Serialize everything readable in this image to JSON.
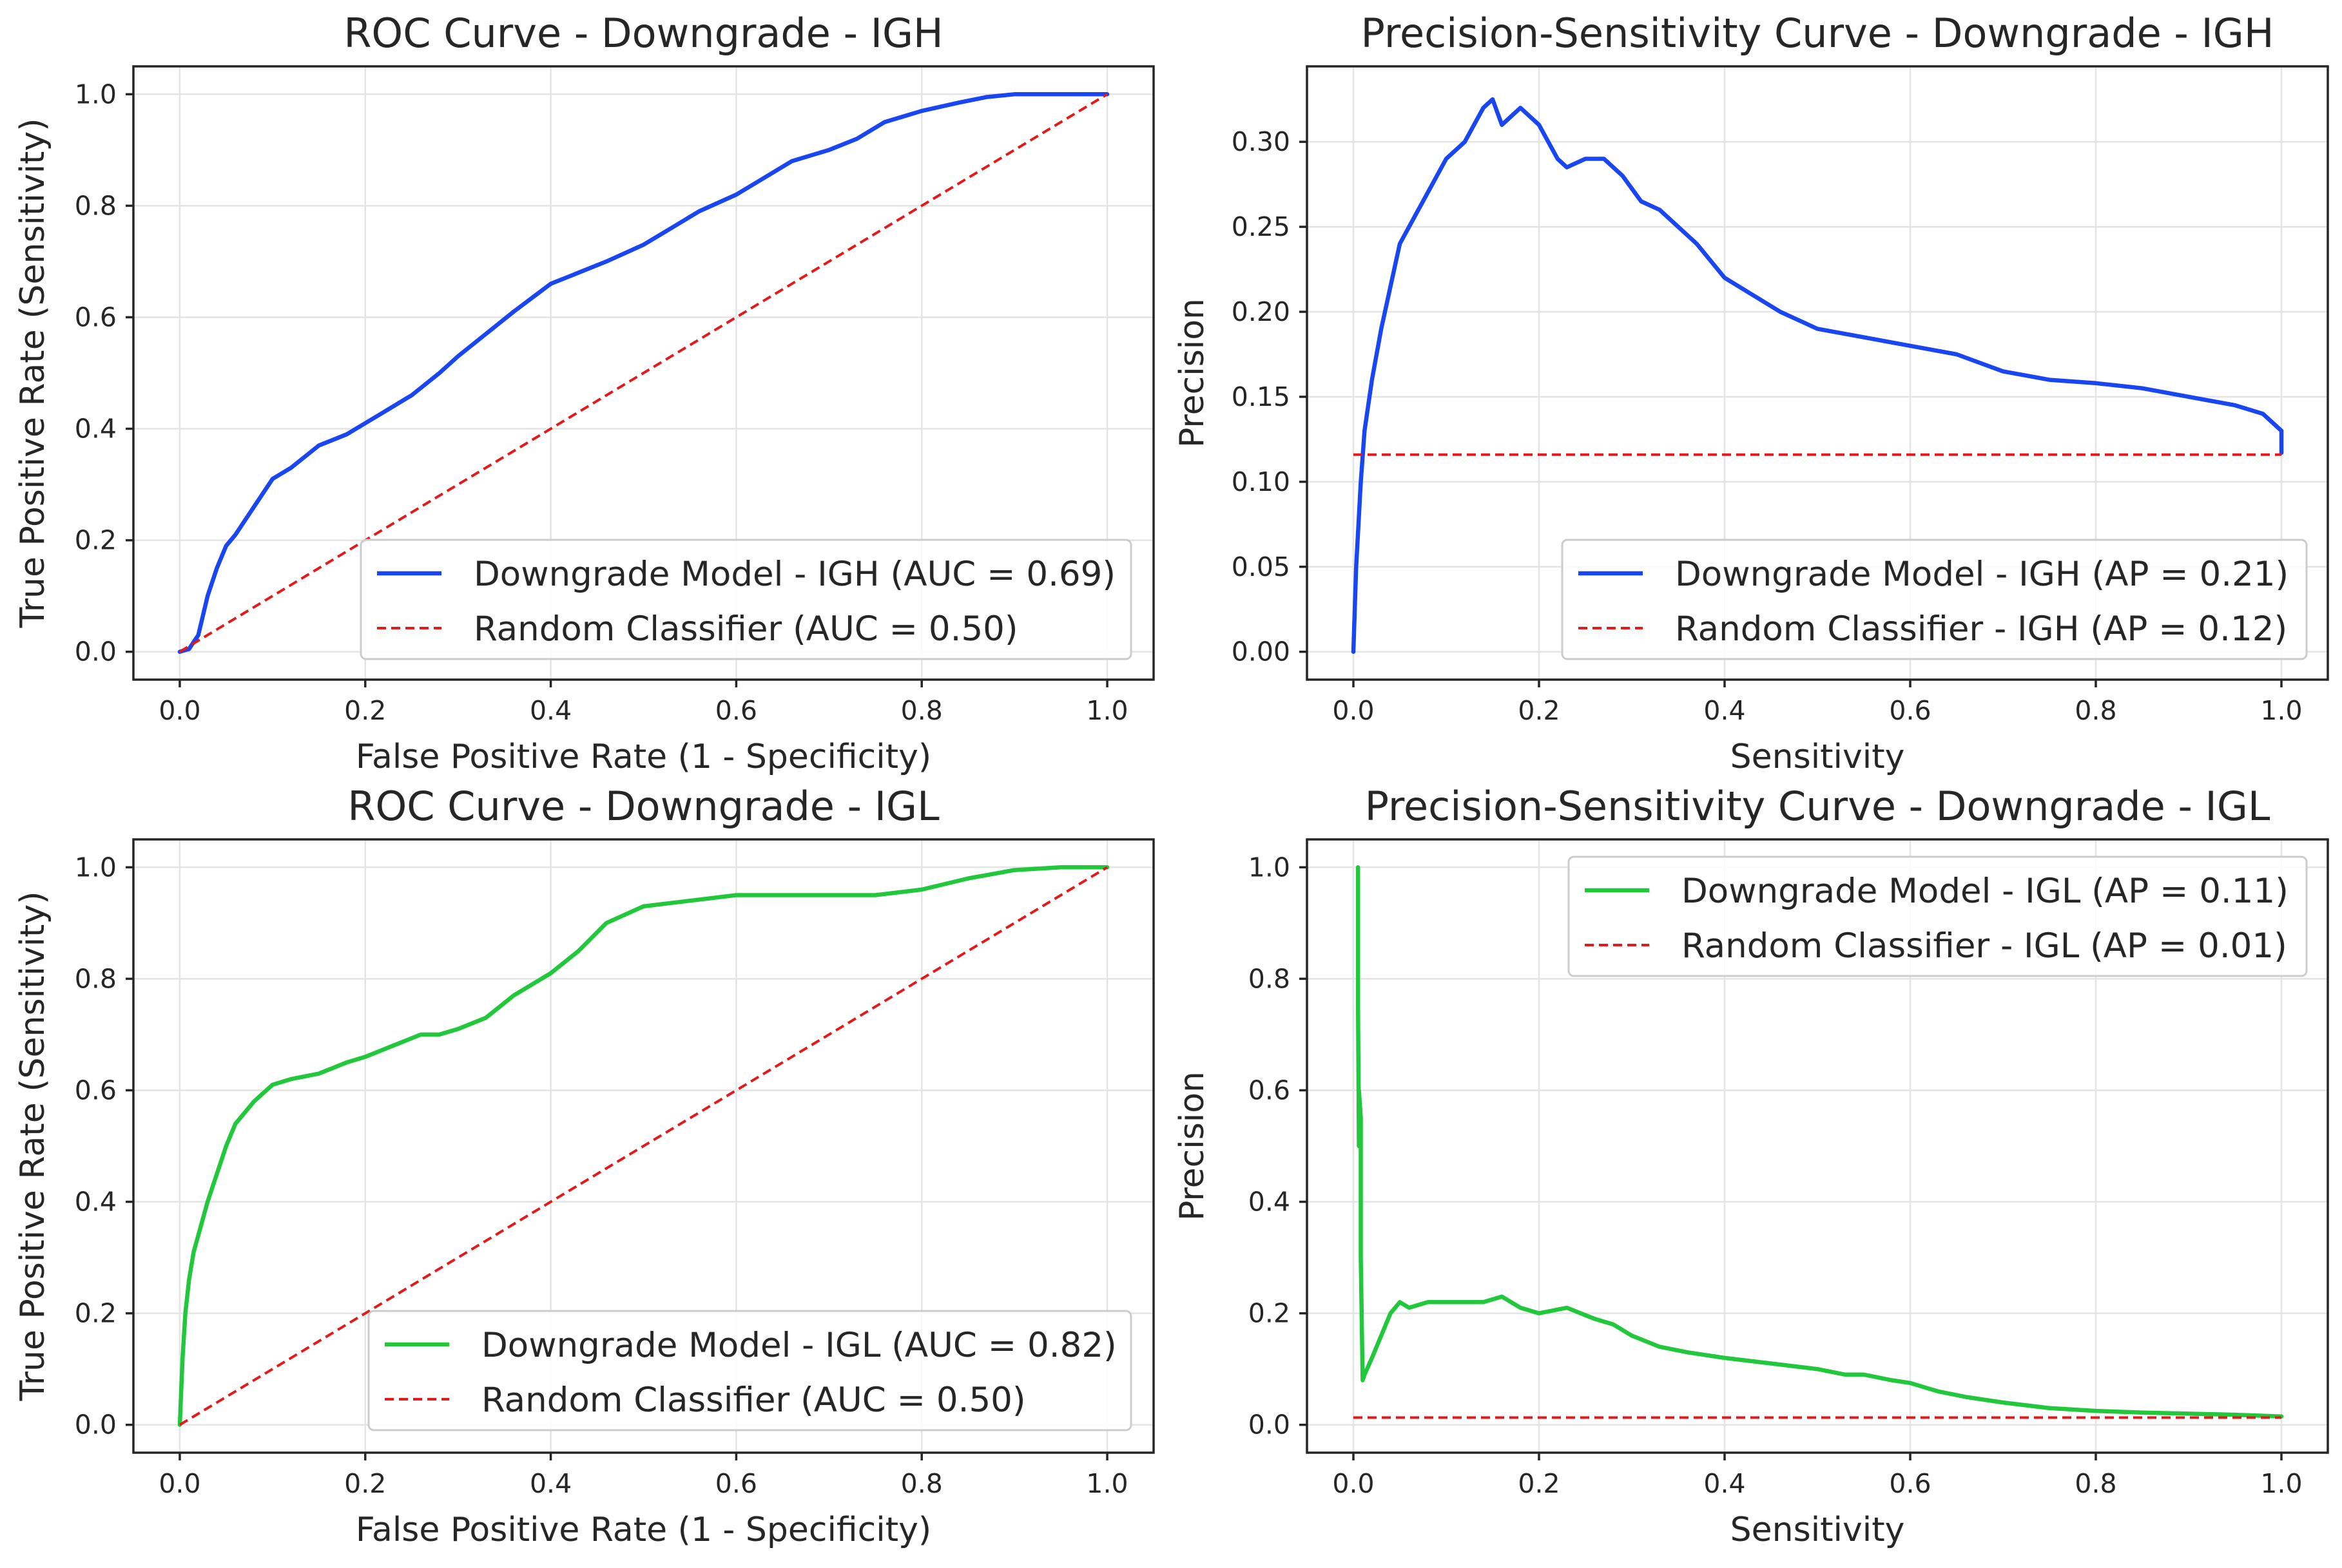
{
  "chart_data": [
    {
      "type": "line",
      "title": "ROC Curve - Downgrade - IGH",
      "xlabel": "False Positive Rate (1 - Specificity)",
      "ylabel": "True Positive Rate (Sensitivity)",
      "xlim": [
        -0.05,
        1.05
      ],
      "ylim": [
        -0.05,
        1.05
      ],
      "xticks": [
        "0.0",
        "0.2",
        "0.4",
        "0.6",
        "0.8",
        "1.0"
      ],
      "yticks": [
        "0.0",
        "0.2",
        "0.4",
        "0.6",
        "0.8",
        "1.0"
      ],
      "grid": true,
      "legend_position": "lower-right",
      "series": [
        {
          "name": "Downgrade Model - IGH (AUC = 0.69)",
          "color": "#1746f2",
          "style": "solid",
          "x": [
            0.0,
            0.01,
            0.02,
            0.03,
            0.04,
            0.05,
            0.06,
            0.08,
            0.1,
            0.12,
            0.15,
            0.18,
            0.2,
            0.22,
            0.25,
            0.28,
            0.3,
            0.33,
            0.36,
            0.4,
            0.43,
            0.46,
            0.5,
            0.53,
            0.56,
            0.6,
            0.63,
            0.66,
            0.7,
            0.73,
            0.76,
            0.8,
            0.84,
            0.87,
            0.9,
            0.95,
            1.0
          ],
          "y": [
            0.0,
            0.005,
            0.03,
            0.1,
            0.15,
            0.19,
            0.21,
            0.26,
            0.31,
            0.33,
            0.37,
            0.39,
            0.41,
            0.43,
            0.46,
            0.5,
            0.53,
            0.57,
            0.61,
            0.66,
            0.68,
            0.7,
            0.73,
            0.76,
            0.79,
            0.82,
            0.85,
            0.88,
            0.9,
            0.92,
            0.95,
            0.97,
            0.985,
            0.995,
            1.0,
            1.0,
            1.0
          ]
        },
        {
          "name": "Random Classifier (AUC = 0.50)",
          "color": "#e31a1c",
          "style": "dashed",
          "x": [
            0.0,
            1.0
          ],
          "y": [
            0.0,
            1.0
          ]
        }
      ]
    },
    {
      "type": "line",
      "title": "Precision-Sensitivity Curve - Downgrade - IGH",
      "xlabel": "Sensitivity",
      "ylabel": "Precision",
      "xlim": [
        -0.05,
        1.05
      ],
      "ylim": [
        -0.0164,
        0.3444
      ],
      "xticks": [
        "0.0",
        "0.2",
        "0.4",
        "0.6",
        "0.8",
        "1.0"
      ],
      "yticks": [
        "0.00",
        "0.05",
        "0.10",
        "0.15",
        "0.20",
        "0.25",
        "0.30"
      ],
      "grid": true,
      "legend_position": "lower-right",
      "series": [
        {
          "name": "Downgrade Model - IGH (AP = 0.21)",
          "color": "#1746f2",
          "style": "solid",
          "x": [
            0.0,
            0.003,
            0.008,
            0.012,
            0.02,
            0.03,
            0.05,
            0.06,
            0.08,
            0.1,
            0.12,
            0.14,
            0.15,
            0.16,
            0.18,
            0.2,
            0.21,
            0.22,
            0.23,
            0.25,
            0.27,
            0.29,
            0.31,
            0.33,
            0.35,
            0.37,
            0.4,
            0.43,
            0.46,
            0.5,
            0.55,
            0.6,
            0.65,
            0.7,
            0.75,
            0.8,
            0.85,
            0.9,
            0.95,
            0.98,
            1.0,
            1.0
          ],
          "y": [
            0.0,
            0.05,
            0.1,
            0.13,
            0.16,
            0.19,
            0.24,
            0.25,
            0.27,
            0.29,
            0.3,
            0.32,
            0.325,
            0.31,
            0.32,
            0.31,
            0.3,
            0.29,
            0.285,
            0.29,
            0.29,
            0.28,
            0.265,
            0.26,
            0.25,
            0.24,
            0.22,
            0.21,
            0.2,
            0.19,
            0.185,
            0.18,
            0.175,
            0.165,
            0.16,
            0.158,
            0.155,
            0.15,
            0.145,
            0.14,
            0.13,
            0.117
          ]
        },
        {
          "name": "Random Classifier - IGH (AP = 0.12)",
          "color": "#e31a1c",
          "style": "dashed",
          "x": [
            0.0,
            1.0
          ],
          "y": [
            0.116,
            0.116
          ]
        }
      ]
    },
    {
      "type": "line",
      "title": "ROC Curve - Downgrade - IGL",
      "xlabel": "False Positive Rate (1 - Specificity)",
      "ylabel": "True Positive Rate (Sensitivity)",
      "xlim": [
        -0.05,
        1.05
      ],
      "ylim": [
        -0.05,
        1.05
      ],
      "xticks": [
        "0.0",
        "0.2",
        "0.4",
        "0.6",
        "0.8",
        "1.0"
      ],
      "yticks": [
        "0.0",
        "0.2",
        "0.4",
        "0.6",
        "0.8",
        "1.0"
      ],
      "grid": true,
      "legend_position": "lower-right",
      "series": [
        {
          "name": "Downgrade Model - IGL (AUC = 0.82)",
          "color": "#22c83c",
          "style": "solid",
          "x": [
            0.0,
            0.003,
            0.006,
            0.01,
            0.015,
            0.02,
            0.03,
            0.04,
            0.05,
            0.06,
            0.08,
            0.1,
            0.12,
            0.15,
            0.18,
            0.2,
            0.23,
            0.26,
            0.28,
            0.3,
            0.33,
            0.36,
            0.4,
            0.43,
            0.46,
            0.5,
            0.55,
            0.6,
            0.65,
            0.7,
            0.75,
            0.8,
            0.85,
            0.9,
            0.95,
            1.0
          ],
          "y": [
            0.0,
            0.12,
            0.2,
            0.26,
            0.31,
            0.34,
            0.4,
            0.45,
            0.5,
            0.54,
            0.58,
            0.61,
            0.62,
            0.63,
            0.65,
            0.66,
            0.68,
            0.7,
            0.7,
            0.71,
            0.73,
            0.77,
            0.81,
            0.85,
            0.9,
            0.93,
            0.94,
            0.95,
            0.95,
            0.95,
            0.95,
            0.96,
            0.98,
            0.995,
            1.0,
            1.0
          ]
        },
        {
          "name": "Random Classifier (AUC = 0.50)",
          "color": "#e31a1c",
          "style": "dashed",
          "x": [
            0.0,
            1.0
          ],
          "y": [
            0.0,
            1.0
          ]
        }
      ]
    },
    {
      "type": "line",
      "title": "Precision-Sensitivity Curve - Downgrade - IGL",
      "xlabel": "Sensitivity",
      "ylabel": "Precision",
      "xlim": [
        -0.05,
        1.05
      ],
      "ylim": [
        -0.05,
        1.05
      ],
      "xticks": [
        "0.0",
        "0.2",
        "0.4",
        "0.6",
        "0.8",
        "1.0"
      ],
      "yticks": [
        "0.0",
        "0.2",
        "0.4",
        "0.6",
        "0.8",
        "1.0"
      ],
      "grid": true,
      "legend_position": "upper-right",
      "series": [
        {
          "name": "Downgrade Model - IGL (AP = 0.11)",
          "color": "#22c83c",
          "style": "solid",
          "x": [
            0.005,
            0.005,
            0.006,
            0.006,
            0.008,
            0.008,
            0.01,
            0.012,
            0.02,
            0.03,
            0.04,
            0.05,
            0.06,
            0.08,
            0.1,
            0.12,
            0.14,
            0.16,
            0.18,
            0.2,
            0.23,
            0.26,
            0.28,
            0.3,
            0.33,
            0.36,
            0.4,
            0.45,
            0.5,
            0.53,
            0.55,
            0.58,
            0.6,
            0.63,
            0.66,
            0.7,
            0.75,
            0.8,
            0.85,
            0.9,
            0.95,
            1.0
          ],
          "y": [
            1.0,
            0.75,
            0.5,
            0.6,
            0.55,
            0.3,
            0.08,
            0.09,
            0.12,
            0.16,
            0.2,
            0.22,
            0.21,
            0.22,
            0.22,
            0.22,
            0.22,
            0.23,
            0.21,
            0.2,
            0.21,
            0.19,
            0.18,
            0.16,
            0.14,
            0.13,
            0.12,
            0.11,
            0.1,
            0.09,
            0.09,
            0.08,
            0.075,
            0.06,
            0.05,
            0.04,
            0.03,
            0.025,
            0.022,
            0.02,
            0.018,
            0.015
          ]
        },
        {
          "name": "Random Classifier - IGL (AP = 0.01)",
          "color": "#e31a1c",
          "style": "dashed",
          "x": [
            0.0,
            1.0
          ],
          "y": [
            0.013,
            0.013
          ]
        }
      ]
    }
  ]
}
